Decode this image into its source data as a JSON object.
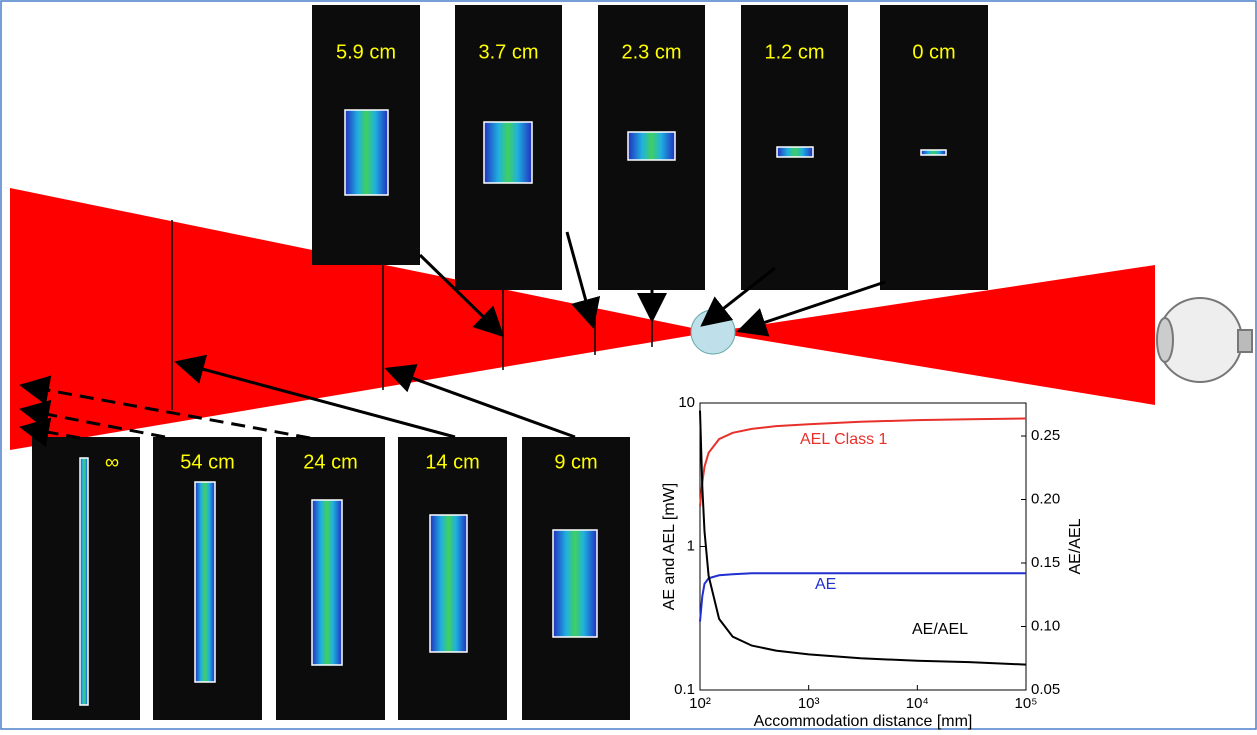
{
  "top_labels": [
    "5.9 cm",
    "3.7 cm",
    "2.3 cm",
    "1.2 cm",
    "0 cm"
  ],
  "bottom_labels": [
    "∞",
    "54 cm",
    "24 cm",
    "14 cm",
    "9 cm"
  ],
  "chart_data": {
    "type": "line",
    "xlabel": "Accommodation distance [mm]",
    "ylabel": "AE and AEL [mW]",
    "y2label": "AE/AEL",
    "xscale": "log",
    "yscale": "log",
    "xlim": [
      100,
      100000
    ],
    "xticks": [
      {
        "value": 100,
        "label": "10²"
      },
      {
        "value": 1000,
        "label": "10³"
      },
      {
        "value": 10000,
        "label": "10⁴"
      },
      {
        "value": 100000,
        "label": "10⁵"
      }
    ],
    "ylim": [
      0.1,
      10
    ],
    "yticks": [
      0.1,
      1,
      10
    ],
    "y2lim": [
      0.05,
      0.276
    ],
    "y2ticks": [
      0.05,
      {
        "value": 0.1,
        "label": "0.10"
      },
      {
        "value": 0.15,
        "label": "0.15"
      },
      {
        "value": 0.2,
        "label": "0.20"
      },
      0.25
    ],
    "x": [
      100,
      105,
      110,
      120,
      150,
      200,
      300,
      500,
      1000,
      3000,
      10000,
      30000,
      100000
    ],
    "series": [
      {
        "name": "AEL Class 1",
        "color": "#e8302a",
        "values": [
          1.9,
          2.8,
          3.6,
          4.5,
          5.6,
          6.2,
          6.6,
          6.9,
          7.1,
          7.4,
          7.6,
          7.7,
          7.8
        ]
      },
      {
        "name": "AE",
        "color": "#1f2fd0",
        "values": [
          0.3,
          0.45,
          0.55,
          0.6,
          0.63,
          0.64,
          0.65,
          0.65,
          0.65,
          0.65,
          0.65,
          0.65,
          0.65
        ]
      },
      {
        "name": "AE/AEL",
        "color": "#000000",
        "axis": "y2",
        "values": [
          0.27,
          0.21,
          0.175,
          0.14,
          0.106,
          0.092,
          0.085,
          0.081,
          0.078,
          0.075,
          0.073,
          0.072,
          0.07
        ]
      }
    ]
  }
}
